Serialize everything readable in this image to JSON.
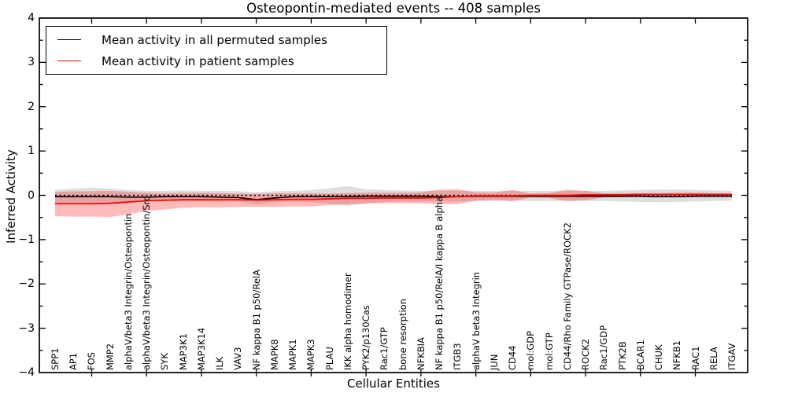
{
  "chart_data": {
    "type": "line",
    "title": "Osteopontin-mediated events -- 408 samples",
    "xlabel": "Cellular Entities",
    "ylabel": "Inferred Activity",
    "ylim": [
      -4,
      4
    ],
    "yticks": [
      4,
      3,
      2,
      1,
      0,
      -1,
      -2,
      -3,
      -4
    ],
    "yticklabels": [
      "4",
      "3",
      "2",
      "1",
      "0",
      "−1",
      "−2",
      "−3",
      "−4"
    ],
    "grid": false,
    "reference_line": {
      "y": 0,
      "style": "dotted",
      "color": "#000000"
    },
    "legend_position": "upper left",
    "legend": {
      "items": [
        {
          "label": "Mean activity in all permuted samples",
          "color": "#000000"
        },
        {
          "label": "Mean activity in patient samples",
          "color": "#ff0000"
        }
      ]
    },
    "categories": [
      "SPP1",
      "AP1",
      "FOS",
      "MMP2",
      "alphaV/beta3 Integrin/Osteopontin",
      "alphaV/beta3 Integrin/Osteopontin/Src",
      "SYK",
      "MAP3K1",
      "MAP3K14",
      "ILK",
      "VAV3",
      "NF kappa B1 p50/RelA",
      "MAPK8",
      "MAPK1",
      "MAPK3",
      "PLAU",
      "IKK alpha homodimer",
      "PYK2/p130Cas",
      "Rac1/GTP",
      "bone resorption",
      "NFKBIA",
      "NF kappa B1 p50/RelA/I kappa B alpha",
      "ITGB3",
      "alphaV beta3 Integrin",
      "JUN",
      "CD44",
      "mol:GDP",
      "mol:GTP",
      "CD44/Rho Family GTPase/ROCK2",
      "ROCK2",
      "Rac1/GDP",
      "PTK2B",
      "BCAR1",
      "CHUK",
      "NFKB1",
      "RAC1",
      "RELA",
      "ITGAV"
    ],
    "series": [
      {
        "name": "Mean activity in all permuted samples",
        "line_color": "#000000",
        "band_color": "rgba(0,0,0,0.13)",
        "band_name": "permuted-samples-std-band",
        "mean": [
          -0.03,
          -0.03,
          -0.03,
          -0.03,
          -0.04,
          -0.04,
          -0.03,
          -0.03,
          -0.03,
          -0.04,
          -0.05,
          -0.1,
          -0.06,
          -0.03,
          -0.03,
          -0.03,
          -0.03,
          -0.02,
          -0.02,
          -0.02,
          -0.02,
          -0.03,
          -0.03,
          -0.02,
          -0.02,
          -0.02,
          -0.02,
          -0.02,
          -0.02,
          -0.02,
          -0.02,
          -0.02,
          -0.02,
          -0.03,
          -0.03,
          -0.02,
          -0.02,
          -0.02
        ],
        "band_upper": [
          0.13,
          0.15,
          0.17,
          0.15,
          0.12,
          0.1,
          0.1,
          0.11,
          0.1,
          0.1,
          0.09,
          0.07,
          0.09,
          0.1,
          0.12,
          0.16,
          0.21,
          0.14,
          0.12,
          0.11,
          0.1,
          0.1,
          0.1,
          0.1,
          0.1,
          0.1,
          0.1,
          0.1,
          0.1,
          0.1,
          0.1,
          0.11,
          0.12,
          0.13,
          0.13,
          0.12,
          0.11,
          0.1
        ],
        "band_lower": [
          -0.18,
          -0.19,
          -0.21,
          -0.19,
          -0.17,
          -0.15,
          -0.14,
          -0.14,
          -0.14,
          -0.14,
          -0.14,
          -0.2,
          -0.16,
          -0.14,
          -0.15,
          -0.19,
          -0.24,
          -0.17,
          -0.15,
          -0.14,
          -0.14,
          -0.14,
          -0.14,
          -0.13,
          -0.13,
          -0.13,
          -0.13,
          -0.13,
          -0.13,
          -0.13,
          -0.13,
          -0.14,
          -0.15,
          -0.15,
          -0.15,
          -0.14,
          -0.13,
          -0.12
        ]
      },
      {
        "name": "Mean activity in patient samples",
        "line_color": "#ff0000",
        "band_color": "rgba(255,0,0,0.27)",
        "band_name": "patient-samples-std-band",
        "mean": [
          -0.19,
          -0.19,
          -0.19,
          -0.18,
          -0.15,
          -0.12,
          -0.11,
          -0.1,
          -0.1,
          -0.1,
          -0.1,
          -0.11,
          -0.1,
          -0.09,
          -0.09,
          -0.08,
          -0.07,
          -0.07,
          -0.06,
          -0.06,
          -0.06,
          -0.05,
          -0.03,
          -0.01,
          -0.01,
          -0.01,
          0.0,
          0.0,
          0.0,
          0.01,
          0.01,
          0.01,
          0.02,
          0.02,
          0.02,
          0.02,
          0.02,
          0.02
        ],
        "band_upper": [
          0.08,
          0.09,
          0.09,
          0.1,
          0.08,
          0.06,
          0.05,
          0.06,
          0.06,
          0.05,
          0.04,
          0.03,
          0.05,
          0.05,
          0.05,
          0.04,
          0.05,
          0.06,
          0.06,
          0.06,
          0.07,
          0.13,
          0.14,
          0.07,
          0.06,
          0.12,
          0.04,
          0.05,
          0.13,
          0.1,
          0.05,
          0.05,
          0.05,
          0.05,
          0.06,
          0.06,
          0.05,
          0.04
        ],
        "band_lower": [
          -0.47,
          -0.48,
          -0.48,
          -0.49,
          -0.43,
          -0.35,
          -0.32,
          -0.28,
          -0.27,
          -0.27,
          -0.26,
          -0.26,
          -0.26,
          -0.25,
          -0.25,
          -0.22,
          -0.2,
          -0.19,
          -0.18,
          -0.18,
          -0.18,
          -0.2,
          -0.2,
          -0.12,
          -0.1,
          -0.13,
          -0.05,
          -0.06,
          -0.13,
          -0.11,
          -0.05,
          -0.04,
          -0.03,
          -0.03,
          -0.03,
          -0.03,
          -0.02,
          -0.02
        ]
      }
    ]
  }
}
